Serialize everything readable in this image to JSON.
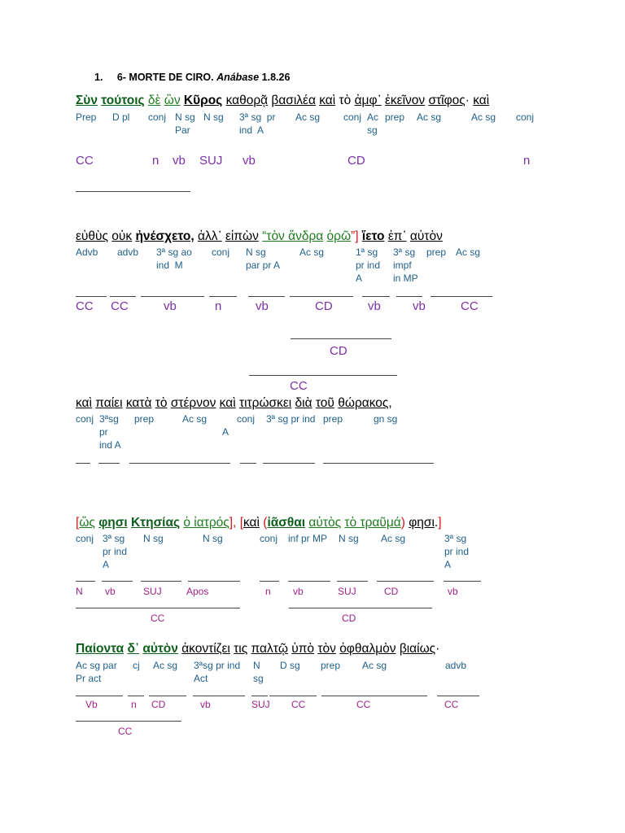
{
  "heading": {
    "number": "1.",
    "title": "6- MORTE DE CIRO.",
    "work": "Anábase",
    "ref": "1.8.26"
  },
  "s1": {
    "words": [
      "Σὺν",
      "τούτοις",
      "δὲ",
      "ὢν",
      "Κῦρος",
      "καθορᾷ",
      "βασιλέα",
      "καὶ",
      "τὸ",
      "ἀμφ᾽",
      "ἐκεῖνον",
      "στῖφος",
      "·",
      "καὶ"
    ],
    "ann": [
      "Prep",
      "D pl",
      "conj",
      "N sg\nPar",
      "N sg",
      "3ª sg  pr\nind  A",
      "Ac sg",
      "conj",
      "Ac\nsg",
      "prep",
      "Ac sg",
      "Ac sg",
      "conj"
    ],
    "roles": [
      "CC",
      "n",
      "vb",
      "SUJ",
      "vb",
      "CD",
      "n"
    ]
  },
  "s2": {
    "words": [
      "εὐθὺς",
      "οὐκ",
      "ἠνέσχετο,",
      "ἀλλ᾽",
      "εἰπὼν",
      "“τὸν ἄνδρα",
      "ὁρῶ",
      "”]",
      "ἵετο",
      "ἐπ᾽",
      "αὐτὸν"
    ],
    "ann": [
      "Advb",
      "advb",
      "3ª sg ao\nind  M",
      "conj",
      "N sg\npar pr A",
      "Ac sg",
      "1ª sg\npr ind\nA",
      "3ª sg\nimpf\nin MP",
      "prep",
      "Ac sg"
    ],
    "roles": [
      "CC",
      "CC",
      "vb",
      "n",
      "vb",
      "CD",
      "vb",
      "vb",
      "CC"
    ],
    "roles_extra": [
      "CD",
      "CC"
    ]
  },
  "s3": {
    "words": [
      "καὶ",
      "παίει",
      "κατὰ",
      "τὸ",
      "στέρνον",
      "καὶ",
      "τιτρώσκει",
      "διὰ",
      "τοῦ",
      "θώρακος",
      ","
    ],
    "ann": [
      "conj",
      "3ªsg\npr\nind A",
      "prep",
      "Ac sg",
      "A",
      "conj",
      "3ª sg pr ind",
      "prep",
      "gn sg"
    ]
  },
  "s4": {
    "words": [
      "[",
      "ὥς",
      "φησι",
      "Κτησίας",
      "ὁ ἰατρός",
      "],",
      "[",
      "καὶ",
      "(",
      "ἰᾶσθαι",
      "αὐτὸς",
      "τὸ τραῦμά",
      ")",
      "φησι",
      ".",
      "]"
    ],
    "ann": [
      "conj",
      "3ª sg\npr ind\nA",
      "N sg",
      "N sg",
      "conj",
      "inf pr MP",
      "N sg",
      "Ac sg",
      "3ª sg\npr ind\nA"
    ],
    "roles": [
      "N",
      "vb",
      "SUJ",
      "Apos",
      "n",
      "vb",
      "SUJ",
      "CD",
      "vb"
    ],
    "roles_extra": [
      "CC",
      "CD"
    ]
  },
  "s5": {
    "words": [
      "Παίοντα",
      "δ᾽",
      "αὐτὸν",
      "ἀκοντίζει",
      "τις",
      "παλτῷ",
      "ὑπὸ",
      "τὸν",
      "ὀφθαλμὸν",
      "βιαίως",
      "·"
    ],
    "ann": [
      "Ac sg par\nPr act",
      "cj",
      "Ac sg",
      "3ªsg pr ind\nAct",
      "N\nsg",
      "D sg",
      "prep",
      "Ac sg",
      "advb"
    ],
    "roles": [
      "Vb",
      "n",
      "CD",
      "vb",
      "SUJ",
      "CC",
      "CC",
      "CC"
    ],
    "roles_extra": [
      "CC"
    ]
  }
}
